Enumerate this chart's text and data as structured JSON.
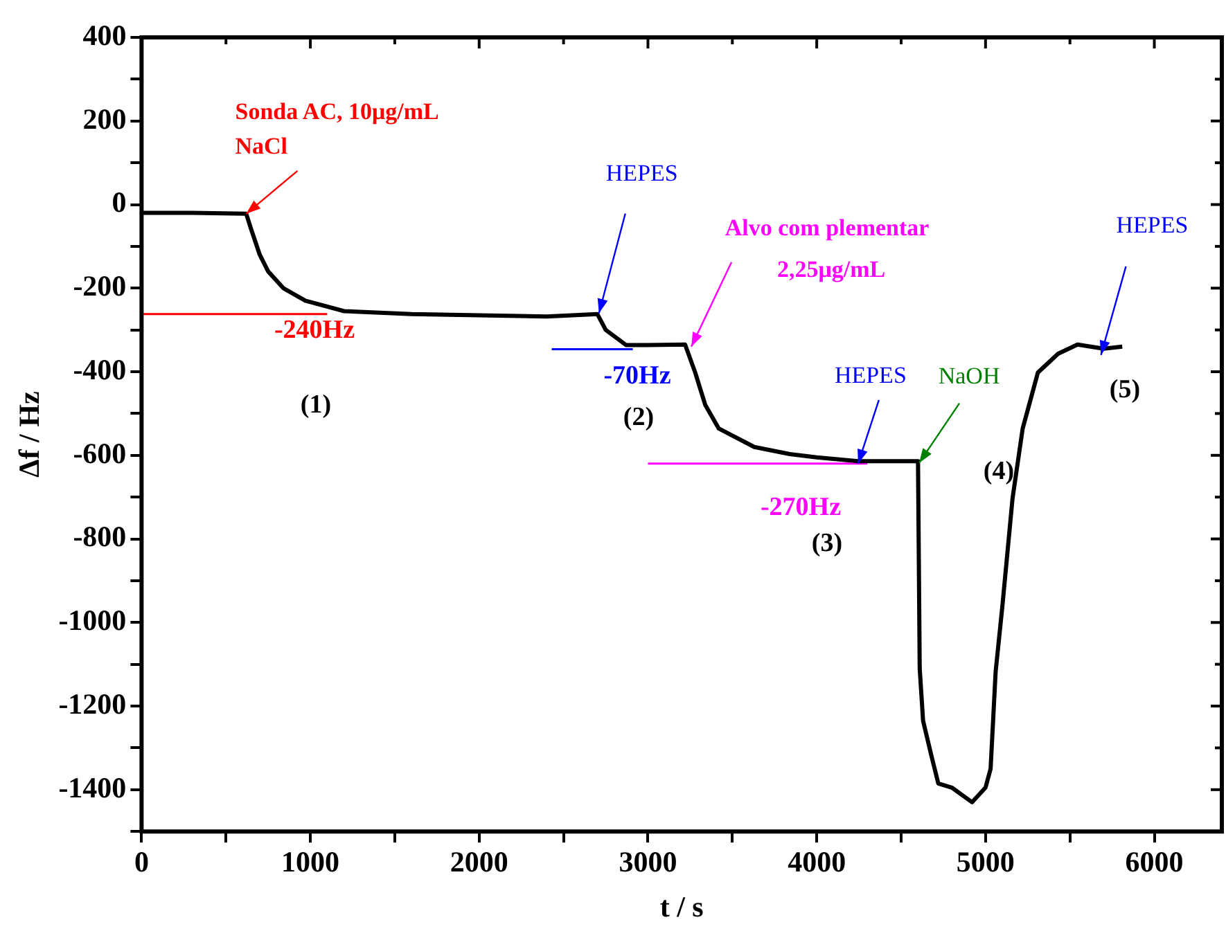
{
  "chart_data": {
    "type": "line",
    "xlabel": "t / s",
    "ylabel": "Δf / Hz",
    "xlim": [
      0,
      6400
    ],
    "ylim": [
      -1500,
      400
    ],
    "xticks": [
      0,
      {
        "value": 500,
        "label": null
      },
      1000,
      {
        "value": 1500,
        "label": null
      },
      2000,
      {
        "value": 2500,
        "label": null
      },
      3000,
      {
        "value": 3500,
        "label": null
      },
      4000,
      {
        "value": 4500,
        "label": null
      },
      5000,
      {
        "value": 5500,
        "label": null
      },
      6000
    ],
    "yticks": [
      {
        "value": -1500,
        "label": null
      },
      -1400,
      {
        "value": -1300,
        "label": null
      },
      -1200,
      {
        "value": -1100,
        "label": null
      },
      -1000,
      {
        "value": -900,
        "label": null
      },
      -800,
      {
        "value": -700,
        "label": null
      },
      -600,
      {
        "value": -500,
        "label": null
      },
      -400,
      {
        "value": -300,
        "label": null
      },
      -200,
      {
        "value": -100,
        "label": null
      },
      0,
      {
        "value": 100,
        "label": null
      },
      200,
      {
        "value": 300,
        "label": null
      },
      400
    ],
    "grid": false,
    "legend": false,
    "marker": "none",
    "line_style": "solid",
    "series": [
      {
        "color": "#000000",
        "x": [
          0,
          300,
          620,
          650,
          700,
          750,
          840,
          970,
          1200,
          1600,
          2000,
          2400,
          2700,
          2750,
          2870,
          3000,
          3220,
          3280,
          3340,
          3420,
          3630,
          3840,
          4000,
          4245,
          4600,
          4610,
          4630,
          4680,
          4720,
          4800,
          4920,
          5000,
          5030,
          5060,
          5100,
          5160,
          5220,
          5280,
          5310,
          5430,
          5545,
          5700,
          5810
        ],
        "values": [
          -20,
          -20,
          -22,
          -60,
          -120,
          -160,
          -200,
          -230,
          -255,
          -262,
          -265,
          -268,
          -262,
          -300,
          -336,
          -336,
          -335,
          -402,
          -480,
          -536,
          -580,
          -597,
          -605,
          -614,
          -614,
          -1110,
          -1235,
          -1320,
          -1385,
          -1395,
          -1430,
          -1395,
          -1350,
          -1117,
          -960,
          -703,
          -536,
          -447,
          -402,
          -357,
          -335,
          -345,
          -340
        ]
      },
      {
        "color": "#ff0000",
        "x": [
          0,
          1100
        ],
        "values": [
          -262,
          -262
        ]
      },
      {
        "color": "#0000ff",
        "x": [
          2430,
          2910
        ],
        "values": [
          -346,
          -346
        ]
      },
      {
        "color": "#ff00ff",
        "x": [
          3000,
          4300
        ],
        "values": [
          -620,
          -620
        ]
      }
    ],
    "annotations": [
      {
        "text": "Sonda AC, 10μg/mL\nNaCl",
        "x": 620,
        "y": -22
      },
      {
        "text": "HEPES",
        "x": 2710,
        "y": -260
      },
      {
        "text": "Alvo com plementar\n2,25μg/mL",
        "x": 3257,
        "y": -340
      },
      {
        "text": "HEPES",
        "x": 4245,
        "y": -620
      },
      {
        "text": "NaOH",
        "x": 4607,
        "y": -618
      },
      {
        "text": "HEPES",
        "x": 5684,
        "y": -360
      },
      "-240Hz",
      "-70Hz",
      "-270Hz",
      "(1)",
      "(2)",
      "(3)",
      "(4)",
      "(5)"
    ]
  }
}
